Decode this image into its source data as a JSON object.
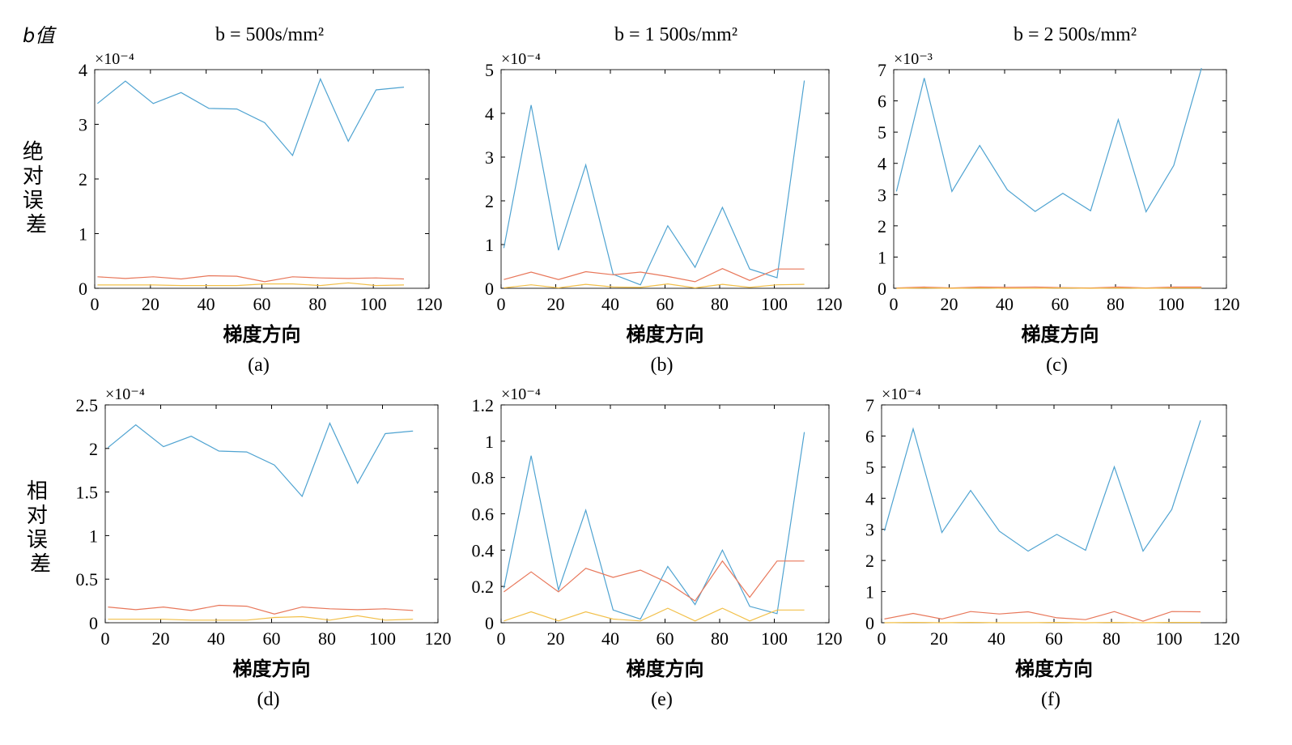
{
  "header": {
    "b_label": "b值",
    "columns": [
      "b = 500s/mm²",
      "b = 1 500s/mm²",
      "b = 2 500s/mm²"
    ]
  },
  "row_labels": [
    "绝对误差",
    "相对误差"
  ],
  "colors": {
    "blue": "#4fa3d1",
    "red": "#e8775a",
    "yellow": "#f2c04a"
  },
  "chart_data": [
    {
      "type": "line",
      "caption": "(a)",
      "xlabel": "梯度方向",
      "ylabel": "",
      "exponent": "×10⁻⁴",
      "xlim": [
        0,
        120
      ],
      "ylim": [
        0,
        4
      ],
      "xticks": [
        0,
        20,
        40,
        60,
        80,
        100,
        120
      ],
      "yticks": [
        0,
        1,
        2,
        3,
        4
      ],
      "ytick_labels": [
        "0",
        "1",
        "2",
        "3",
        "4"
      ],
      "x": [
        1,
        11,
        21,
        31,
        41,
        51,
        61,
        71,
        81,
        91,
        101,
        111
      ],
      "series": [
        {
          "color": "blue",
          "values": [
            3.38,
            3.79,
            3.38,
            3.58,
            3.29,
            3.28,
            3.03,
            2.43,
            3.83,
            2.69,
            3.63,
            3.68
          ]
        },
        {
          "color": "red",
          "values": [
            0.21,
            0.18,
            0.21,
            0.17,
            0.23,
            0.22,
            0.12,
            0.21,
            0.19,
            0.18,
            0.19,
            0.17
          ]
        },
        {
          "color": "yellow",
          "values": [
            0.06,
            0.06,
            0.06,
            0.05,
            0.05,
            0.05,
            0.08,
            0.08,
            0.05,
            0.1,
            0.05,
            0.06
          ]
        }
      ]
    },
    {
      "type": "line",
      "caption": "(b)",
      "xlabel": "梯度方向",
      "ylabel": "",
      "exponent": "×10⁻⁴",
      "xlim": [
        0,
        120
      ],
      "ylim": [
        0,
        5
      ],
      "xticks": [
        0,
        20,
        40,
        60,
        80,
        100,
        120
      ],
      "yticks": [
        0,
        1,
        2,
        3,
        4,
        5
      ],
      "ytick_labels": [
        "0",
        "1",
        "2",
        "3",
        "4",
        "5"
      ],
      "x": [
        1,
        11,
        21,
        31,
        41,
        51,
        61,
        71,
        81,
        91,
        101,
        111
      ],
      "series": [
        {
          "color": "blue",
          "values": [
            0.92,
            4.19,
            0.87,
            2.82,
            0.32,
            0.08,
            1.43,
            0.48,
            1.85,
            0.44,
            0.24,
            4.75
          ]
        },
        {
          "color": "red",
          "values": [
            0.2,
            0.37,
            0.2,
            0.38,
            0.31,
            0.37,
            0.27,
            0.15,
            0.45,
            0.18,
            0.44,
            0.44
          ]
        },
        {
          "color": "yellow",
          "values": [
            0.01,
            0.08,
            0.01,
            0.09,
            0.03,
            0.02,
            0.1,
            0.01,
            0.09,
            0.02,
            0.08,
            0.09
          ]
        }
      ]
    },
    {
      "type": "line",
      "caption": "(c)",
      "xlabel": "梯度方向",
      "ylabel": "",
      "exponent": "×10⁻³",
      "xlim": [
        0,
        120
      ],
      "ylim": [
        0,
        7
      ],
      "xticks": [
        0,
        20,
        40,
        60,
        80,
        100,
        120
      ],
      "yticks": [
        0,
        1,
        2,
        3,
        4,
        5,
        6,
        7
      ],
      "ytick_labels": [
        "0",
        "1",
        "2",
        "3",
        "4",
        "5",
        "6",
        "7"
      ],
      "x": [
        1,
        11,
        21,
        31,
        41,
        51,
        61,
        71,
        81,
        91,
        101,
        111
      ],
      "series": [
        {
          "color": "blue",
          "values": [
            3.1,
            6.73,
            3.1,
            4.57,
            3.15,
            2.46,
            3.04,
            2.48,
            5.4,
            2.45,
            3.93,
            7.05
          ]
        },
        {
          "color": "red",
          "values": [
            0.01,
            0.04,
            0.01,
            0.04,
            0.03,
            0.04,
            0.02,
            0.01,
            0.04,
            0.01,
            0.04,
            0.04
          ]
        },
        {
          "color": "yellow",
          "values": [
            0.0,
            0.01,
            0.0,
            0.01,
            0.0,
            0.0,
            0.01,
            0.0,
            0.01,
            0.0,
            0.01,
            0.01
          ]
        }
      ]
    },
    {
      "type": "line",
      "caption": "(d)",
      "xlabel": "梯度方向",
      "ylabel": "",
      "exponent": "×10⁻⁴",
      "xlim": [
        0,
        120
      ],
      "ylim": [
        0,
        2.5
      ],
      "xticks": [
        0,
        20,
        40,
        60,
        80,
        100,
        120
      ],
      "yticks": [
        0,
        0.5,
        1,
        1.5,
        2,
        2.5
      ],
      "ytick_labels": [
        "0",
        "0.5",
        "1",
        "1.5",
        "2",
        "2.5"
      ],
      "x": [
        1,
        11,
        21,
        31,
        41,
        51,
        61,
        71,
        81,
        91,
        101,
        111
      ],
      "series": [
        {
          "color": "blue",
          "values": [
            2.01,
            2.27,
            2.02,
            2.14,
            1.97,
            1.96,
            1.81,
            1.45,
            2.29,
            1.6,
            2.17,
            2.2
          ]
        },
        {
          "color": "red",
          "values": [
            0.18,
            0.15,
            0.18,
            0.14,
            0.2,
            0.19,
            0.1,
            0.18,
            0.16,
            0.15,
            0.16,
            0.14
          ]
        },
        {
          "color": "yellow",
          "values": [
            0.04,
            0.04,
            0.04,
            0.03,
            0.03,
            0.03,
            0.06,
            0.07,
            0.03,
            0.08,
            0.03,
            0.04
          ]
        }
      ]
    },
    {
      "type": "line",
      "caption": "(e)",
      "xlabel": "梯度方向",
      "ylabel": "",
      "exponent": "×10⁻⁴",
      "xlim": [
        0,
        120
      ],
      "ylim": [
        0,
        1.2
      ],
      "xticks": [
        0,
        20,
        40,
        60,
        80,
        100,
        120
      ],
      "yticks": [
        0,
        0.2,
        0.4,
        0.6,
        0.8,
        1,
        1.2
      ],
      "ytick_labels": [
        "0",
        "0.2",
        "0.4",
        "0.6",
        "0.8",
        "1",
        "1.2"
      ],
      "x": [
        1,
        11,
        21,
        31,
        41,
        51,
        61,
        71,
        81,
        91,
        101,
        111
      ],
      "series": [
        {
          "color": "blue",
          "values": [
            0.19,
            0.92,
            0.18,
            0.62,
            0.07,
            0.02,
            0.31,
            0.1,
            0.4,
            0.09,
            0.05,
            1.05
          ]
        },
        {
          "color": "red",
          "values": [
            0.17,
            0.28,
            0.17,
            0.3,
            0.25,
            0.29,
            0.22,
            0.12,
            0.34,
            0.14,
            0.34,
            0.34
          ]
        },
        {
          "color": "yellow",
          "values": [
            0.01,
            0.06,
            0.01,
            0.06,
            0.02,
            0.01,
            0.08,
            0.01,
            0.08,
            0.01,
            0.07,
            0.07
          ]
        }
      ]
    },
    {
      "type": "line",
      "caption": "(f)",
      "xlabel": "梯度方向",
      "ylabel": "",
      "exponent": "×10⁻⁴",
      "xlim": [
        0,
        120
      ],
      "ylim": [
        0,
        7
      ],
      "xticks": [
        0,
        20,
        40,
        60,
        80,
        100,
        120
      ],
      "yticks": [
        0,
        1,
        2,
        3,
        4,
        5,
        6,
        7
      ],
      "ytick_labels": [
        "0",
        "1",
        "2",
        "3",
        "4",
        "5",
        "6",
        "7"
      ],
      "x": [
        1,
        11,
        21,
        31,
        41,
        51,
        61,
        71,
        81,
        91,
        101,
        111
      ],
      "series": [
        {
          "color": "blue",
          "values": [
            2.95,
            6.23,
            2.9,
            4.25,
            2.94,
            2.3,
            2.84,
            2.33,
            5.01,
            2.3,
            3.64,
            6.5
          ]
        },
        {
          "color": "red",
          "values": [
            0.12,
            0.3,
            0.12,
            0.36,
            0.28,
            0.35,
            0.16,
            0.1,
            0.36,
            0.05,
            0.36,
            0.35
          ]
        },
        {
          "color": "yellow",
          "values": [
            0.0,
            0.01,
            0.0,
            0.01,
            0.0,
            0.0,
            0.01,
            0.0,
            0.01,
            0.0,
            0.01,
            0.01
          ]
        }
      ]
    }
  ]
}
